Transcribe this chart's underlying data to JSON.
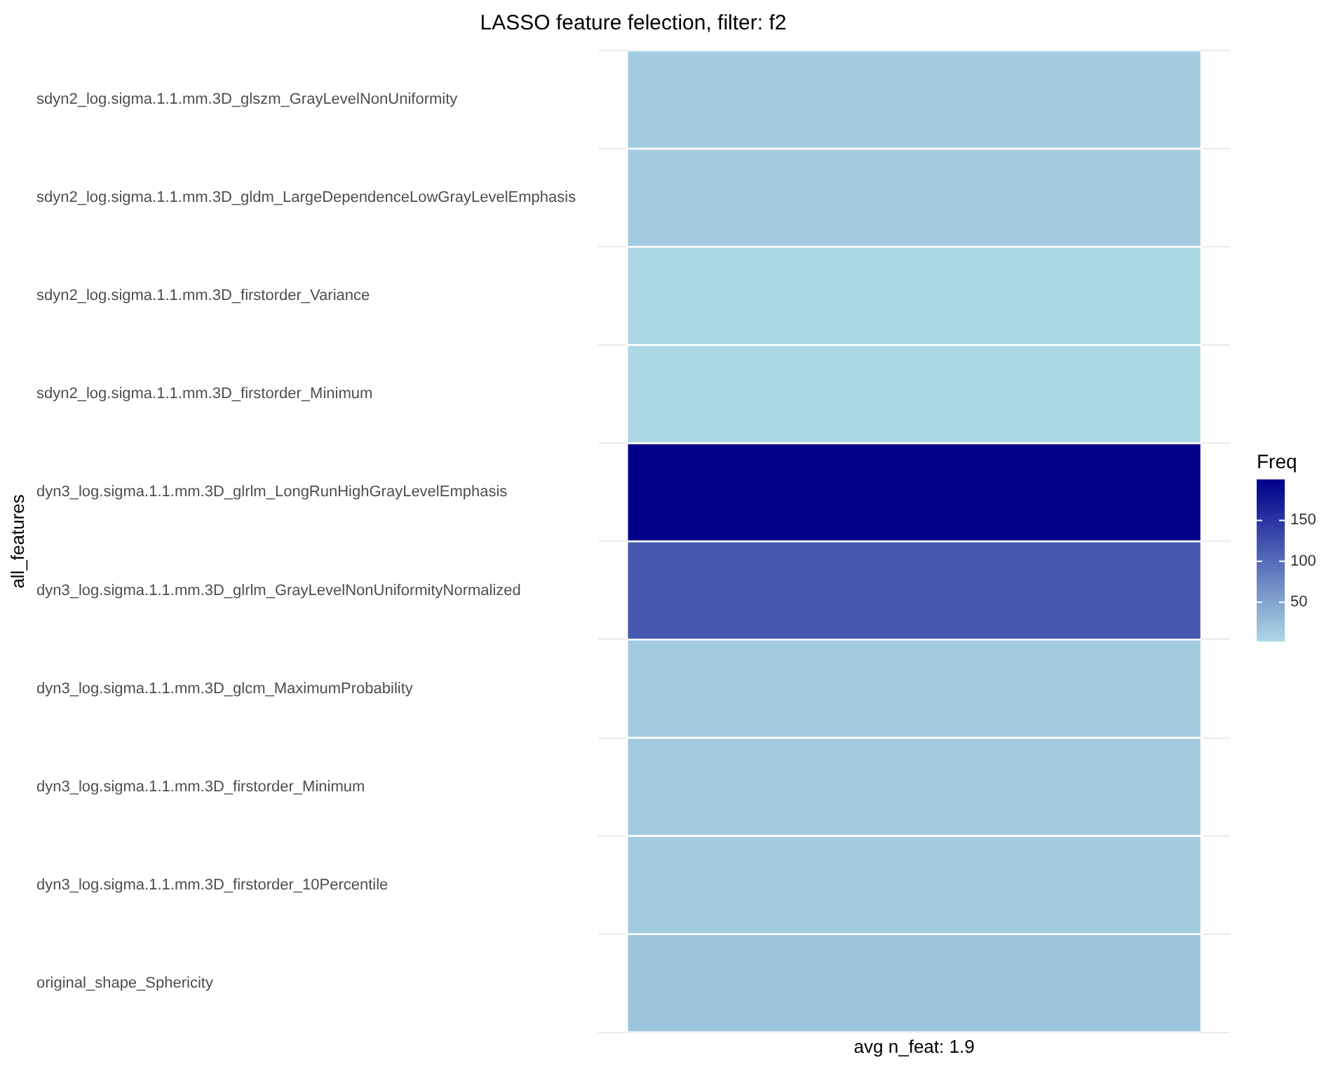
{
  "chart_data": {
    "type": "heatmap",
    "title": "LASSO feature felection, filter: f2",
    "ylabel": "all_features",
    "legend_title": "Freq",
    "categories": [
      "avg n_feat: 1.9"
    ],
    "y_categories": [
      "sdyn2_log.sigma.1.1.mm.3D_glszm_GrayLevelNonUniformity",
      "sdyn2_log.sigma.1.1.mm.3D_gldm_LargeDependenceLowGrayLevelEmphasis",
      "sdyn2_log.sigma.1.1.mm.3D_firstorder_Variance",
      "sdyn2_log.sigma.1.1.mm.3D_firstorder_Minimum",
      "dyn3_log.sigma.1.1.mm.3D_glrlm_LongRunHighGrayLevelEmphasis",
      "dyn3_log.sigma.1.1.mm.3D_glrlm_GrayLevelNonUniformityNormalized",
      "dyn3_log.sigma.1.1.mm.3D_glcm_MaximumProbability",
      "dyn3_log.sigma.1.1.mm.3D_firstorder_Minimum",
      "dyn3_log.sigma.1.1.mm.3D_firstorder_10Percentile",
      "original_shape_Sphericity"
    ],
    "cells": [
      [
        15
      ],
      [
        15
      ],
      [
        3
      ],
      [
        3
      ],
      [
        200
      ],
      [
        120
      ],
      [
        15
      ],
      [
        15
      ],
      [
        15
      ],
      [
        20
      ]
    ],
    "clim": [
      3,
      200
    ],
    "cticks": [
      50,
      100,
      150
    ],
    "grid": "y"
  }
}
